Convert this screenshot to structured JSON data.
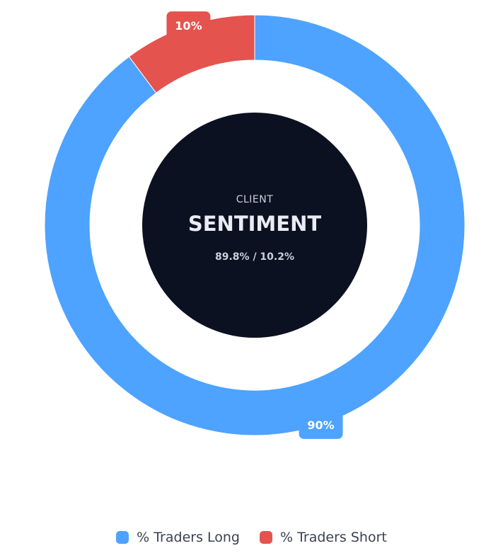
{
  "center": {
    "eyebrow": "CLIENT",
    "title": "SENTIMENT",
    "ratio": "89.8% / 10.2%"
  },
  "chart_data": {
    "type": "pie",
    "variant": "doughnut",
    "series": [
      {
        "name": "% Traders Long",
        "value": 89.8,
        "label": "90%",
        "color": "#4da3ff"
      },
      {
        "name": "% Traders Short",
        "value": 10.2,
        "label": "10%",
        "color": "#e5534f"
      }
    ],
    "center_color": "#0c1121",
    "legend_position": "bottom"
  }
}
